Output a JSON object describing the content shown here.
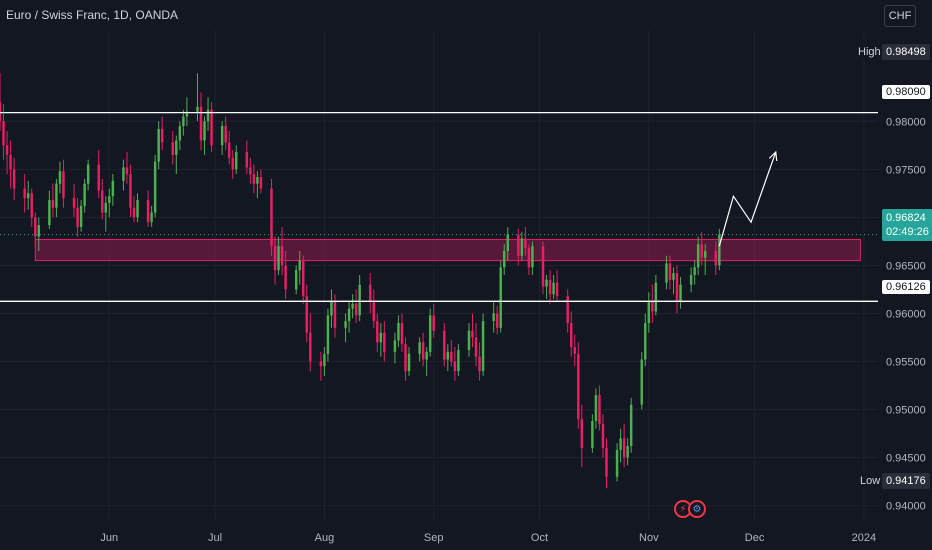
{
  "header": {
    "title": "Euro / Swiss Franc, 1D, OANDA",
    "currency_button": "CHF"
  },
  "price_axis": {
    "ticks": [
      "0.98000",
      "0.97500",
      "0.97000",
      "0.96500",
      "0.96000",
      "0.95500",
      "0.95000",
      "0.94500",
      "0.94000"
    ],
    "high_label": "High",
    "high_value": "0.98498",
    "low_label": "Low",
    "low_value": "0.94176",
    "current_price": "0.96824",
    "countdown": "02:49:26"
  },
  "time_axis": {
    "ticks": [
      "Jun",
      "Jul",
      "Aug",
      "Sep",
      "Oct",
      "Nov",
      "Dec",
      "2024"
    ]
  },
  "levels": {
    "upper_line": "0.98090",
    "lower_line": "0.96126"
  },
  "colors": {
    "background": "#131722",
    "up_candle": "#4caf50",
    "down_candle": "#e91e63",
    "zone_fill": "#8e1b4e",
    "zone_border": "#e91e63",
    "level_line": "#ffffff",
    "current_price": "#26a69a"
  },
  "chart_data": {
    "type": "candlestick",
    "symbol": "EUR/CHF",
    "interval": "1D",
    "ylim": [
      0.9385,
      0.9895
    ],
    "x_range": [
      "2023-05-01",
      "2024-01-05"
    ],
    "horizontal_lines": [
      0.9809,
      0.96126
    ],
    "zone": {
      "from": 0.9655,
      "to": 0.9677,
      "start": "2023-05-11",
      "end": "2023-12-31"
    },
    "projection_path": [
      {
        "date": "2023-11-21",
        "price": 0.967
      },
      {
        "date": "2023-11-25",
        "price": 0.9722
      },
      {
        "date": "2023-11-30",
        "price": 0.9695
      },
      {
        "date": "2023-12-07",
        "price": 0.9768
      }
    ],
    "candles": [
      [
        "2023-05-01",
        0.982,
        0.985,
        0.979,
        0.98
      ],
      [
        "2023-05-02",
        0.98,
        0.9818,
        0.976,
        0.9775
      ],
      [
        "2023-05-03",
        0.9775,
        0.979,
        0.9745,
        0.9765
      ],
      [
        "2023-05-04",
        0.9765,
        0.978,
        0.973,
        0.975
      ],
      [
        "2023-05-05",
        0.975,
        0.9762,
        0.9718,
        0.973
      ],
      [
        "2023-05-08",
        0.973,
        0.9745,
        0.9705,
        0.972
      ],
      [
        "2023-05-09",
        0.972,
        0.9738,
        0.9708,
        0.9725
      ],
      [
        "2023-05-10",
        0.9725,
        0.973,
        0.969,
        0.97
      ],
      [
        "2023-05-11",
        0.97,
        0.9705,
        0.967,
        0.968
      ],
      [
        "2023-05-12",
        0.968,
        0.97,
        0.9665,
        0.9692
      ],
      [
        "2023-05-15",
        0.9692,
        0.9728,
        0.9688,
        0.9718
      ],
      [
        "2023-05-16",
        0.9718,
        0.9735,
        0.97,
        0.971
      ],
      [
        "2023-05-17",
        0.971,
        0.974,
        0.97,
        0.9735
      ],
      [
        "2023-05-18",
        0.9735,
        0.9758,
        0.9725,
        0.9748
      ],
      [
        "2023-05-19",
        0.9748,
        0.976,
        0.971,
        0.972
      ],
      [
        "2023-05-22",
        0.972,
        0.9735,
        0.97,
        0.971
      ],
      [
        "2023-05-23",
        0.971,
        0.972,
        0.968,
        0.969
      ],
      [
        "2023-05-24",
        0.969,
        0.9718,
        0.9685,
        0.9712
      ],
      [
        "2023-05-25",
        0.9712,
        0.974,
        0.9705,
        0.9735
      ],
      [
        "2023-05-26",
        0.9735,
        0.976,
        0.9728,
        0.9755
      ],
      [
        "2023-05-29",
        0.9755,
        0.977,
        0.972,
        0.9728
      ],
      [
        "2023-05-30",
        0.9728,
        0.974,
        0.9698,
        0.9705
      ],
      [
        "2023-05-31",
        0.9705,
        0.9722,
        0.9685,
        0.9715
      ],
      [
        "2023-06-01",
        0.9715,
        0.973,
        0.97,
        0.9722
      ],
      [
        "2023-06-02",
        0.9722,
        0.9745,
        0.9712,
        0.9738
      ],
      [
        "2023-06-05",
        0.9738,
        0.976,
        0.9728,
        0.9752
      ],
      [
        "2023-06-06",
        0.9752,
        0.9768,
        0.9735,
        0.9745
      ],
      [
        "2023-06-07",
        0.9745,
        0.9755,
        0.97,
        0.971
      ],
      [
        "2023-06-08",
        0.971,
        0.9722,
        0.9695,
        0.97
      ],
      [
        "2023-06-09",
        0.97,
        0.9725,
        0.9695,
        0.9718
      ],
      [
        "2023-06-12",
        0.9718,
        0.9728,
        0.969,
        0.9695
      ],
      [
        "2023-06-13",
        0.9695,
        0.9712,
        0.969,
        0.9705
      ],
      [
        "2023-06-14",
        0.9705,
        0.9765,
        0.97,
        0.9758
      ],
      [
        "2023-06-15",
        0.9758,
        0.98,
        0.975,
        0.9792
      ],
      [
        "2023-06-16",
        0.9792,
        0.9805,
        0.977,
        0.9778
      ],
      [
        "2023-06-19",
        0.9778,
        0.979,
        0.9755,
        0.9765
      ],
      [
        "2023-06-20",
        0.9765,
        0.9785,
        0.9745,
        0.978
      ],
      [
        "2023-06-21",
        0.978,
        0.98,
        0.977,
        0.9795
      ],
      [
        "2023-06-22",
        0.9795,
        0.9812,
        0.9785,
        0.9805
      ],
      [
        "2023-06-23",
        0.9805,
        0.9825,
        0.9795,
        0.981
      ],
      [
        "2023-06-26",
        0.981,
        0.985,
        0.98,
        0.9815
      ],
      [
        "2023-06-27",
        0.9815,
        0.983,
        0.977,
        0.978
      ],
      [
        "2023-06-28",
        0.978,
        0.9805,
        0.9765,
        0.98
      ],
      [
        "2023-06-29",
        0.98,
        0.9825,
        0.979,
        0.9812
      ],
      [
        "2023-06-30",
        0.9812,
        0.982,
        0.9768,
        0.9775
      ],
      [
        "2023-07-03",
        0.9775,
        0.98,
        0.9765,
        0.9795
      ],
      [
        "2023-07-04",
        0.9795,
        0.9805,
        0.977,
        0.9778
      ],
      [
        "2023-07-05",
        0.9778,
        0.979,
        0.9755,
        0.9762
      ],
      [
        "2023-07-06",
        0.9762,
        0.977,
        0.974,
        0.975
      ],
      [
        "2023-07-07",
        0.975,
        0.9775,
        0.9745,
        0.9768
      ],
      [
        "2023-07-10",
        0.9768,
        0.978,
        0.9745,
        0.9752
      ],
      [
        "2023-07-11",
        0.9752,
        0.9762,
        0.9735,
        0.9745
      ],
      [
        "2023-07-12",
        0.9745,
        0.9755,
        0.9725,
        0.9735
      ],
      [
        "2023-07-13",
        0.9735,
        0.9748,
        0.972,
        0.9742
      ],
      [
        "2023-07-14",
        0.9742,
        0.975,
        0.9725,
        0.973
      ],
      [
        "2023-07-17",
        0.973,
        0.974,
        0.966,
        0.967
      ],
      [
        "2023-07-18",
        0.967,
        0.968,
        0.963,
        0.9645
      ],
      [
        "2023-07-19",
        0.9645,
        0.968,
        0.964,
        0.967
      ],
      [
        "2023-07-20",
        0.967,
        0.969,
        0.964,
        0.965
      ],
      [
        "2023-07-21",
        0.965,
        0.9665,
        0.9615,
        0.9625
      ],
      [
        "2023-07-24",
        0.9625,
        0.965,
        0.962,
        0.9645
      ],
      [
        "2023-07-25",
        0.9645,
        0.9665,
        0.963,
        0.9655
      ],
      [
        "2023-07-26",
        0.9655,
        0.966,
        0.961,
        0.9618
      ],
      [
        "2023-07-27",
        0.9618,
        0.963,
        0.957,
        0.958
      ],
      [
        "2023-07-28",
        0.958,
        0.96,
        0.954,
        0.955
      ],
      [
        "2023-07-31",
        0.955,
        0.956,
        0.953,
        0.9545
      ],
      [
        "2023-08-01",
        0.9545,
        0.9565,
        0.9535,
        0.9558
      ],
      [
        "2023-08-02",
        0.9558,
        0.9605,
        0.955,
        0.9598
      ],
      [
        "2023-08-03",
        0.9598,
        0.9625,
        0.9585,
        0.9612
      ],
      [
        "2023-08-04",
        0.9612,
        0.962,
        0.9575,
        0.9585
      ],
      [
        "2023-08-07",
        0.9585,
        0.96,
        0.957,
        0.9592
      ],
      [
        "2023-08-08",
        0.9592,
        0.9612,
        0.958,
        0.9605
      ],
      [
        "2023-08-09",
        0.9605,
        0.962,
        0.9595,
        0.961
      ],
      [
        "2023-08-10",
        0.961,
        0.9625,
        0.959,
        0.9598
      ],
      [
        "2023-08-11",
        0.9598,
        0.964,
        0.9592,
        0.963
      ],
      [
        "2023-08-14",
        0.963,
        0.9642,
        0.96,
        0.9612
      ],
      [
        "2023-08-15",
        0.9612,
        0.9625,
        0.9585,
        0.9592
      ],
      [
        "2023-08-16",
        0.9592,
        0.96,
        0.956,
        0.957
      ],
      [
        "2023-08-17",
        0.957,
        0.959,
        0.9555,
        0.958
      ],
      [
        "2023-08-18",
        0.958,
        0.9592,
        0.955,
        0.956
      ],
      [
        "2023-08-21",
        0.956,
        0.958,
        0.9548,
        0.9572
      ],
      [
        "2023-08-22",
        0.9572,
        0.9598,
        0.9565,
        0.959
      ],
      [
        "2023-08-23",
        0.959,
        0.96,
        0.956,
        0.9568
      ],
      [
        "2023-08-24",
        0.9568,
        0.9575,
        0.953,
        0.954
      ],
      [
        "2023-08-25",
        0.954,
        0.9565,
        0.9535,
        0.9558
      ],
      [
        "2023-08-28",
        0.9558,
        0.9575,
        0.955,
        0.957
      ],
      [
        "2023-08-29",
        0.957,
        0.958,
        0.9545,
        0.9552
      ],
      [
        "2023-08-30",
        0.9552,
        0.9565,
        0.9535,
        0.956
      ],
      [
        "2023-08-31",
        0.956,
        0.9605,
        0.9555,
        0.9598
      ],
      [
        "2023-09-01",
        0.9598,
        0.961,
        0.9575,
        0.9582
      ],
      [
        "2023-09-04",
        0.9582,
        0.959,
        0.9545,
        0.9552
      ],
      [
        "2023-09-05",
        0.9552,
        0.9568,
        0.954,
        0.956
      ],
      [
        "2023-09-06",
        0.956,
        0.9572,
        0.9545,
        0.955
      ],
      [
        "2023-09-07",
        0.955,
        0.9565,
        0.953,
        0.954
      ],
      [
        "2023-09-08",
        0.954,
        0.9568,
        0.9535,
        0.9562
      ],
      [
        "2023-09-11",
        0.9562,
        0.959,
        0.9555,
        0.9582
      ],
      [
        "2023-09-12",
        0.9582,
        0.96,
        0.9565,
        0.9575
      ],
      [
        "2023-09-13",
        0.9575,
        0.959,
        0.9545,
        0.9555
      ],
      [
        "2023-09-14",
        0.9555,
        0.957,
        0.953,
        0.954
      ],
      [
        "2023-09-15",
        0.954,
        0.96,
        0.9535,
        0.9592
      ],
      [
        "2023-09-18",
        0.9592,
        0.9612,
        0.958,
        0.96
      ],
      [
        "2023-09-19",
        0.96,
        0.9608,
        0.9578,
        0.9585
      ],
      [
        "2023-09-20",
        0.9585,
        0.9655,
        0.958,
        0.9648
      ],
      [
        "2023-09-21",
        0.9648,
        0.9672,
        0.964,
        0.9665
      ],
      [
        "2023-09-22",
        0.9665,
        0.969,
        0.9655,
        0.9682
      ],
      [
        "2023-09-25",
        0.9682,
        0.9688,
        0.965,
        0.966
      ],
      [
        "2023-09-26",
        0.966,
        0.9685,
        0.9655,
        0.9678
      ],
      [
        "2023-09-27",
        0.9678,
        0.969,
        0.966,
        0.9668
      ],
      [
        "2023-09-28",
        0.9668,
        0.9672,
        0.964,
        0.9648
      ],
      [
        "2023-09-29",
        0.9648,
        0.9675,
        0.964,
        0.967
      ],
      [
        "2023-10-02",
        0.967,
        0.9675,
        0.962,
        0.9628
      ],
      [
        "2023-10-03",
        0.9628,
        0.964,
        0.9615,
        0.9635
      ],
      [
        "2023-10-04",
        0.9635,
        0.9645,
        0.961,
        0.962
      ],
      [
        "2023-10-05",
        0.962,
        0.964,
        0.9615,
        0.9632
      ],
      [
        "2023-10-06",
        0.9632,
        0.9645,
        0.9612,
        0.9618
      ],
      [
        "2023-10-09",
        0.9618,
        0.9625,
        0.958,
        0.959
      ],
      [
        "2023-10-10",
        0.959,
        0.9602,
        0.9555,
        0.9565
      ],
      [
        "2023-10-11",
        0.9565,
        0.9578,
        0.9545,
        0.9558
      ],
      [
        "2023-10-12",
        0.9558,
        0.957,
        0.948,
        0.949
      ],
      [
        "2023-10-13",
        0.949,
        0.9505,
        0.944,
        0.946
      ],
      [
        "2023-10-16",
        0.946,
        0.9495,
        0.9455,
        0.9488
      ],
      [
        "2023-10-17",
        0.9488,
        0.9522,
        0.948,
        0.9515
      ],
      [
        "2023-10-18",
        0.9515,
        0.9525,
        0.9478,
        0.9485
      ],
      [
        "2023-10-19",
        0.9485,
        0.9495,
        0.945,
        0.946
      ],
      [
        "2023-10-20",
        0.946,
        0.947,
        0.9418,
        0.943
      ],
      [
        "2023-10-23",
        0.943,
        0.9465,
        0.9425,
        0.9458
      ],
      [
        "2023-10-24",
        0.9458,
        0.948,
        0.9445,
        0.947
      ],
      [
        "2023-10-25",
        0.947,
        0.9485,
        0.944,
        0.945
      ],
      [
        "2023-10-26",
        0.945,
        0.947,
        0.9442,
        0.9462
      ],
      [
        "2023-10-27",
        0.9462,
        0.9512,
        0.9455,
        0.9505
      ],
      [
        "2023-10-30",
        0.9505,
        0.956,
        0.95,
        0.9552
      ],
      [
        "2023-10-31",
        0.9552,
        0.96,
        0.9545,
        0.959
      ],
      [
        "2023-11-01",
        0.959,
        0.9622,
        0.958,
        0.9612
      ],
      [
        "2023-11-02",
        0.9612,
        0.963,
        0.959,
        0.9602
      ],
      [
        "2023-11-03",
        0.9602,
        0.964,
        0.9598,
        0.9632
      ],
      [
        "2023-11-06",
        0.9632,
        0.966,
        0.9625,
        0.9652
      ],
      [
        "2023-11-07",
        0.9652,
        0.966,
        0.9625,
        0.9635
      ],
      [
        "2023-11-08",
        0.9635,
        0.9648,
        0.962,
        0.9642
      ],
      [
        "2023-11-09",
        0.9642,
        0.965,
        0.96,
        0.9612
      ],
      [
        "2023-11-10",
        0.9612,
        0.9638,
        0.9605,
        0.963
      ],
      [
        "2023-11-13",
        0.963,
        0.9648,
        0.9622,
        0.964
      ],
      [
        "2023-11-14",
        0.964,
        0.9655,
        0.963,
        0.9648
      ],
      [
        "2023-11-15",
        0.9648,
        0.968,
        0.964,
        0.9672
      ],
      [
        "2023-11-16",
        0.9672,
        0.9685,
        0.965,
        0.9658
      ],
      [
        "2023-11-17",
        0.9658,
        0.9672,
        0.964,
        0.9665
      ],
      [
        "2023-11-20",
        0.9665,
        0.9675,
        0.964,
        0.965
      ],
      [
        "2023-11-21",
        0.965,
        0.9688,
        0.9645,
        0.9682
      ]
    ]
  }
}
